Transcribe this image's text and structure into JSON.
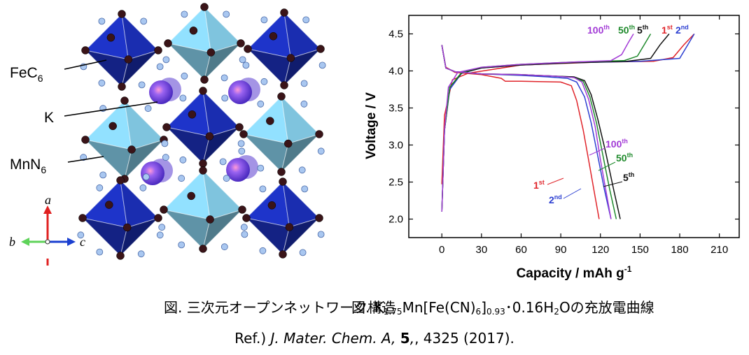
{
  "figure_left": {
    "labels": {
      "fec6": "FeC",
      "fec6_sub": "6",
      "k": "K",
      "mnn6": "MnN",
      "mnn6_sub": "6"
    },
    "axes": {
      "a": "a",
      "b": "b",
      "c": "c"
    },
    "colors": {
      "fe_octahedra": "#1a2db0",
      "mn_octahedra": "#7fc4de",
      "k_atoms": "#6a4fd6",
      "c_atoms": "#3a1418",
      "n_atoms": "#a9c7f0"
    },
    "caption": "図. 三次元オープンネットワーク構造"
  },
  "figure_right": {
    "caption_prefix": "図. K",
    "caption_sub1": "1.75",
    "caption_mid1": "Mn[Fe(CN)",
    "caption_sub2": "6",
    "caption_mid2": "]",
    "caption_sub3": "0.93",
    "caption_mid3": "･0.16H",
    "caption_sub4": "2",
    "caption_suffix": "Oの充放電曲線"
  },
  "reference": {
    "prefix": "Ref.) ",
    "journal": "J. Mater. Chem. A,",
    "volume": "5",
    "rest": ", 4325 (2017)."
  },
  "chart_data": {
    "type": "line",
    "xlabel": "Capacity / mAh g",
    "xlabel_sup": "-1",
    "ylabel": "Voltage / V",
    "xlim": [
      -25,
      225
    ],
    "ylim": [
      1.75,
      4.75
    ],
    "xticks": [
      0,
      30,
      60,
      90,
      120,
      150,
      180,
      210
    ],
    "yticks": [
      2.0,
      2.5,
      3.0,
      3.5,
      4.0,
      4.5
    ],
    "series": [
      {
        "cycle": "1",
        "sup": "st",
        "color": "#e0242a",
        "charge": [
          [
            0,
            2.47
          ],
          [
            2,
            3.4
          ],
          [
            8,
            3.88
          ],
          [
            20,
            3.97
          ],
          [
            60,
            4.08
          ],
          [
            120,
            4.12
          ],
          [
            160,
            4.13
          ],
          [
            175,
            4.18
          ],
          [
            183,
            4.35
          ],
          [
            191,
            4.5
          ]
        ],
        "discharge": [
          [
            0,
            4.35
          ],
          [
            3,
            4.05
          ],
          [
            10,
            3.98
          ],
          [
            30,
            3.95
          ],
          [
            45,
            3.9
          ],
          [
            48,
            3.86
          ],
          [
            60,
            3.86
          ],
          [
            90,
            3.85
          ],
          [
            98,
            3.8
          ],
          [
            102,
            3.6
          ],
          [
            107,
            3.2
          ],
          [
            112,
            2.7
          ],
          [
            116,
            2.3
          ],
          [
            119,
            2.0
          ]
        ]
      },
      {
        "cycle": "2",
        "sup": "nd",
        "color": "#2c3fd1",
        "charge": [
          [
            0,
            2.1
          ],
          [
            2,
            3.2
          ],
          [
            6,
            3.75
          ],
          [
            15,
            3.97
          ],
          [
            30,
            4.04
          ],
          [
            60,
            4.08
          ],
          [
            100,
            4.11
          ],
          [
            150,
            4.13
          ],
          [
            180,
            4.17
          ],
          [
            186,
            4.35
          ],
          [
            191,
            4.5
          ]
        ],
        "discharge": [
          [
            0,
            4.35
          ],
          [
            3,
            4.04
          ],
          [
            10,
            3.99
          ],
          [
            30,
            3.96
          ],
          [
            60,
            3.94
          ],
          [
            80,
            3.92
          ],
          [
            95,
            3.9
          ],
          [
            102,
            3.85
          ],
          [
            108,
            3.65
          ],
          [
            113,
            3.3
          ],
          [
            118,
            2.85
          ],
          [
            123,
            2.4
          ],
          [
            128,
            2.0
          ]
        ]
      },
      {
        "cycle": "5",
        "sup": "th",
        "color": "#111111",
        "charge": [
          [
            0,
            2.1
          ],
          [
            2,
            3.2
          ],
          [
            6,
            3.78
          ],
          [
            15,
            3.97
          ],
          [
            30,
            4.04
          ],
          [
            60,
            4.08
          ],
          [
            100,
            4.11
          ],
          [
            140,
            4.13
          ],
          [
            158,
            4.17
          ],
          [
            165,
            4.35
          ],
          [
            172,
            4.5
          ]
        ],
        "discharge": [
          [
            0,
            4.35
          ],
          [
            3,
            4.04
          ],
          [
            10,
            3.99
          ],
          [
            30,
            3.96
          ],
          [
            60,
            3.95
          ],
          [
            85,
            3.93
          ],
          [
            100,
            3.92
          ],
          [
            108,
            3.87
          ],
          [
            113,
            3.68
          ],
          [
            118,
            3.35
          ],
          [
            124,
            2.9
          ],
          [
            130,
            2.4
          ],
          [
            135,
            2.0
          ]
        ]
      },
      {
        "cycle": "50",
        "sup": "th",
        "color": "#1f8a2c",
        "charge": [
          [
            0,
            2.1
          ],
          [
            2,
            3.2
          ],
          [
            6,
            3.78
          ],
          [
            15,
            3.98
          ],
          [
            30,
            4.05
          ],
          [
            60,
            4.09
          ],
          [
            100,
            4.12
          ],
          [
            138,
            4.14
          ],
          [
            148,
            4.2
          ],
          [
            153,
            4.35
          ],
          [
            158,
            4.5
          ]
        ],
        "discharge": [
          [
            0,
            4.35
          ],
          [
            3,
            4.04
          ],
          [
            10,
            3.99
          ],
          [
            30,
            3.96
          ],
          [
            60,
            3.95
          ],
          [
            85,
            3.93
          ],
          [
            100,
            3.91
          ],
          [
            107,
            3.86
          ],
          [
            112,
            3.65
          ],
          [
            117,
            3.3
          ],
          [
            122,
            2.85
          ],
          [
            127,
            2.4
          ],
          [
            132,
            2.0
          ]
        ]
      },
      {
        "cycle": "100",
        "sup": "th",
        "color": "#a23ad6",
        "charge": [
          [
            0,
            2.1
          ],
          [
            2,
            3.2
          ],
          [
            5,
            3.78
          ],
          [
            12,
            3.98
          ],
          [
            30,
            4.05
          ],
          [
            60,
            4.09
          ],
          [
            100,
            4.12
          ],
          [
            128,
            4.14
          ],
          [
            136,
            4.22
          ],
          [
            141,
            4.38
          ],
          [
            145,
            4.5
          ]
        ],
        "discharge": [
          [
            0,
            4.35
          ],
          [
            3,
            4.04
          ],
          [
            10,
            3.99
          ],
          [
            30,
            3.96
          ],
          [
            60,
            3.95
          ],
          [
            85,
            3.93
          ],
          [
            100,
            3.91
          ],
          [
            106,
            3.85
          ],
          [
            111,
            3.62
          ],
          [
            116,
            3.25
          ],
          [
            120,
            2.8
          ],
          [
            124,
            2.4
          ],
          [
            128,
            2.0
          ]
        ]
      }
    ]
  }
}
